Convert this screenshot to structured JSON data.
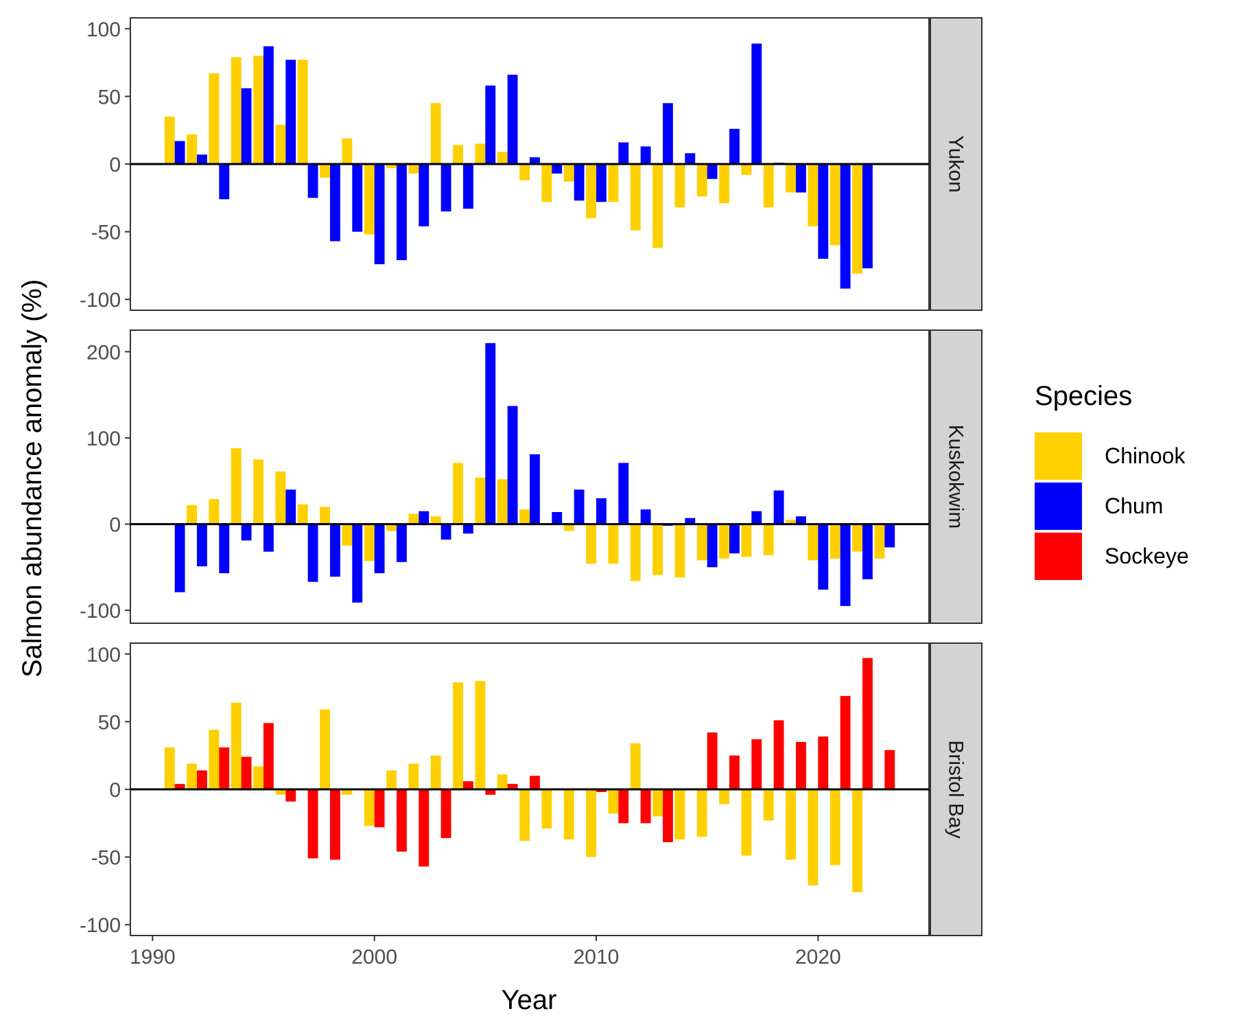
{
  "chart_data": {
    "type": "bar",
    "xlabel": "Year",
    "ylabel": "Salmon abundance anomaly (%)",
    "xlim": [
      1989,
      2025
    ],
    "x_ticks": [
      1990,
      2000,
      2010,
      2020
    ],
    "legend": {
      "title": "Species",
      "placement": "right",
      "entries": [
        {
          "name": "Chinook",
          "color": "#FFD000"
        },
        {
          "name": "Chum",
          "color": "#0000FF"
        },
        {
          "name": "Sockeye",
          "color": "#FF0000"
        }
      ]
    },
    "panels": [
      {
        "strip": "Yukon",
        "ylim": [
          -108,
          108
        ],
        "y_ticks": [
          100,
          50,
          0,
          -50,
          -100
        ],
        "series": [
          {
            "name": "Chinook",
            "values": [
              [
                1991,
                35
              ],
              [
                1992,
                22
              ],
              [
                1993,
                67
              ],
              [
                1994,
                79
              ],
              [
                1995,
                80
              ],
              [
                1996,
                29
              ],
              [
                1997,
                77
              ],
              [
                1998,
                -10
              ],
              [
                1999,
                19
              ],
              [
                2000,
                -52
              ],
              [
                2001,
                -3
              ],
              [
                2002,
                -7
              ],
              [
                2003,
                45
              ],
              [
                2004,
                14
              ],
              [
                2005,
                15
              ],
              [
                2006,
                9
              ],
              [
                2007,
                -12
              ],
              [
                2008,
                -28
              ],
              [
                2009,
                -13
              ],
              [
                2010,
                -40
              ],
              [
                2011,
                -28
              ],
              [
                2012,
                -49
              ],
              [
                2013,
                -62
              ],
              [
                2014,
                -32
              ],
              [
                2015,
                -24
              ],
              [
                2016,
                -29
              ],
              [
                2017,
                -8
              ],
              [
                2018,
                -32
              ],
              [
                2019,
                -21
              ],
              [
                2020,
                -46
              ],
              [
                2021,
                -60
              ],
              [
                2022,
                -81
              ]
            ]
          },
          {
            "name": "Chum",
            "values": [
              [
                1991,
                17
              ],
              [
                1992,
                7
              ],
              [
                1993,
                -26
              ],
              [
                1994,
                56
              ],
              [
                1995,
                87
              ],
              [
                1996,
                77
              ],
              [
                1997,
                -25
              ],
              [
                1998,
                -57
              ],
              [
                1999,
                -50
              ],
              [
                2000,
                -74
              ],
              [
                2001,
                -71
              ],
              [
                2002,
                -46
              ],
              [
                2003,
                -35
              ],
              [
                2004,
                -33
              ],
              [
                2005,
                58
              ],
              [
                2006,
                66
              ],
              [
                2007,
                5
              ],
              [
                2008,
                -7
              ],
              [
                2009,
                -27
              ],
              [
                2010,
                -28
              ],
              [
                2011,
                16
              ],
              [
                2012,
                13
              ],
              [
                2013,
                45
              ],
              [
                2014,
                8
              ],
              [
                2015,
                -11
              ],
              [
                2016,
                26
              ],
              [
                2017,
                89
              ],
              [
                2018,
                1
              ],
              [
                2019,
                -21
              ],
              [
                2020,
                -70
              ],
              [
                2021,
                -92
              ],
              [
                2022,
                -77
              ]
            ]
          }
        ]
      },
      {
        "strip": "Kuskokwim",
        "ylim": [
          -115,
          225
        ],
        "y_ticks": [
          200,
          100,
          0,
          -100
        ],
        "series": [
          {
            "name": "Chinook",
            "values": [
              [
                1992,
                22
              ],
              [
                1993,
                29
              ],
              [
                1994,
                88
              ],
              [
                1995,
                75
              ],
              [
                1996,
                61
              ],
              [
                1997,
                23
              ],
              [
                1998,
                20
              ],
              [
                1999,
                -25
              ],
              [
                2000,
                -43
              ],
              [
                2001,
                -8
              ],
              [
                2002,
                12
              ],
              [
                2003,
                9
              ],
              [
                2004,
                71
              ],
              [
                2005,
                54
              ],
              [
                2006,
                52
              ],
              [
                2007,
                17
              ],
              [
                2009,
                -8
              ],
              [
                2010,
                -46
              ],
              [
                2011,
                -46
              ],
              [
                2012,
                -66
              ],
              [
                2013,
                -59
              ],
              [
                2014,
                -62
              ],
              [
                2015,
                -42
              ],
              [
                2016,
                -40
              ],
              [
                2017,
                -38
              ],
              [
                2018,
                -36
              ],
              [
                2019,
                5
              ],
              [
                2020,
                -42
              ],
              [
                2021,
                -40
              ],
              [
                2022,
                -32
              ],
              [
                2023,
                -40
              ]
            ]
          },
          {
            "name": "Chum",
            "values": [
              [
                1991,
                -79
              ],
              [
                1992,
                -49
              ],
              [
                1993,
                -57
              ],
              [
                1994,
                -19
              ],
              [
                1995,
                -32
              ],
              [
                1996,
                40
              ],
              [
                1997,
                -67
              ],
              [
                1998,
                -61
              ],
              [
                1999,
                -91
              ],
              [
                2000,
                -57
              ],
              [
                2001,
                -44
              ],
              [
                2002,
                15
              ],
              [
                2003,
                -18
              ],
              [
                2004,
                -11
              ],
              [
                2005,
                210
              ],
              [
                2006,
                137
              ],
              [
                2007,
                81
              ],
              [
                2008,
                14
              ],
              [
                2009,
                40
              ],
              [
                2010,
                30
              ],
              [
                2011,
                71
              ],
              [
                2012,
                17
              ],
              [
                2013,
                -2
              ],
              [
                2014,
                7
              ],
              [
                2015,
                -50
              ],
              [
                2016,
                -34
              ],
              [
                2017,
                15
              ],
              [
                2018,
                39
              ],
              [
                2019,
                9
              ],
              [
                2020,
                -76
              ],
              [
                2021,
                -95
              ],
              [
                2022,
                -64
              ],
              [
                2023,
                -27
              ]
            ]
          }
        ]
      },
      {
        "strip": "Bristol Bay",
        "ylim": [
          -108,
          108
        ],
        "y_ticks": [
          100,
          50,
          0,
          -50,
          -100
        ],
        "series": [
          {
            "name": "Chinook",
            "values": [
              [
                1991,
                31
              ],
              [
                1992,
                19
              ],
              [
                1993,
                44
              ],
              [
                1994,
                64
              ],
              [
                1995,
                17
              ],
              [
                1996,
                -4
              ],
              [
                1998,
                59
              ],
              [
                1999,
                -4
              ],
              [
                2000,
                -27
              ],
              [
                2001,
                14
              ],
              [
                2002,
                19
              ],
              [
                2003,
                25
              ],
              [
                2004,
                79
              ],
              [
                2005,
                80
              ],
              [
                2006,
                11
              ],
              [
                2007,
                -38
              ],
              [
                2008,
                -29
              ],
              [
                2009,
                -37
              ],
              [
                2010,
                -50
              ],
              [
                2011,
                -18
              ],
              [
                2012,
                34
              ],
              [
                2013,
                -20
              ],
              [
                2014,
                -37
              ],
              [
                2015,
                -35
              ],
              [
                2016,
                -11
              ],
              [
                2017,
                -49
              ],
              [
                2018,
                -23
              ],
              [
                2019,
                -52
              ],
              [
                2020,
                -71
              ],
              [
                2021,
                -56
              ],
              [
                2022,
                -76
              ]
            ]
          },
          {
            "name": "Sockeye",
            "values": [
              [
                1991,
                4
              ],
              [
                1992,
                14
              ],
              [
                1993,
                31
              ],
              [
                1994,
                24
              ],
              [
                1995,
                49
              ],
              [
                1996,
                -9
              ],
              [
                1997,
                -51
              ],
              [
                1998,
                -52
              ],
              [
                2000,
                -28
              ],
              [
                2001,
                -46
              ],
              [
                2002,
                -57
              ],
              [
                2003,
                -36
              ],
              [
                2004,
                6
              ],
              [
                2005,
                -4
              ],
              [
                2006,
                4
              ],
              [
                2007,
                10
              ],
              [
                2010,
                -2
              ],
              [
                2011,
                -25
              ],
              [
                2012,
                -25
              ],
              [
                2013,
                -39
              ],
              [
                2015,
                42
              ],
              [
                2016,
                25
              ],
              [
                2017,
                37
              ],
              [
                2018,
                51
              ],
              [
                2019,
                35
              ],
              [
                2020,
                39
              ],
              [
                2021,
                69
              ],
              [
                2022,
                97
              ],
              [
                2023,
                29
              ]
            ]
          }
        ]
      }
    ]
  }
}
